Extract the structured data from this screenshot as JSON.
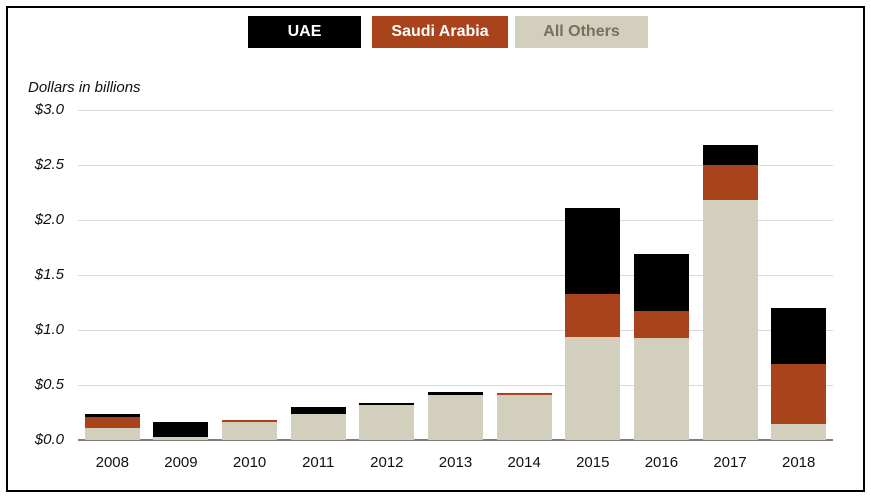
{
  "legend": {
    "items": [
      {
        "label": "UAE",
        "bg": "#000000",
        "text_color": "#ffffff"
      },
      {
        "label": "Saudi Arabia",
        "bg": "#a8431b",
        "text_color": "#ffffff"
      },
      {
        "label": "All Others",
        "bg": "#d2cfbd",
        "text_color": "#73735c"
      }
    ]
  },
  "chart_data": {
    "type": "bar",
    "stacked": true,
    "note": "Dollars in billions",
    "categories": [
      "2008",
      "2009",
      "2010",
      "2011",
      "2012",
      "2013",
      "2014",
      "2015",
      "2016",
      "2017",
      "2018"
    ],
    "series": [
      {
        "name": "All Others",
        "color": "#d2cfbd",
        "values": [
          0.11,
          0.03,
          0.16,
          0.24,
          0.32,
          0.41,
          0.41,
          0.94,
          0.93,
          2.18,
          0.15
        ]
      },
      {
        "name": "Saudi Arabia",
        "color": "#a8431b",
        "values": [
          0.1,
          0.0,
          0.02,
          0.0,
          0.0,
          0.0,
          0.02,
          0.39,
          0.24,
          0.32,
          0.54
        ]
      },
      {
        "name": "UAE",
        "color": "#000000",
        "values": [
          0.03,
          0.13,
          0.0,
          0.06,
          0.02,
          0.03,
          0.0,
          0.78,
          0.52,
          0.18,
          0.51
        ]
      }
    ],
    "yticks": [
      "$3.0",
      "$2.5",
      "$2.0",
      "$1.5",
      "$1.0",
      "$0.5",
      "$0.0"
    ],
    "ylim": [
      0,
      3.0
    ],
    "grid": true,
    "legend_position": "top",
    "legend_order": [
      "UAE",
      "Saudi Arabia",
      "All Others"
    ]
  },
  "colors": {
    "gridline": "#d9d9d9",
    "axis_line": "#7f7f7f",
    "background": "#ffffff",
    "border": "#000000"
  }
}
